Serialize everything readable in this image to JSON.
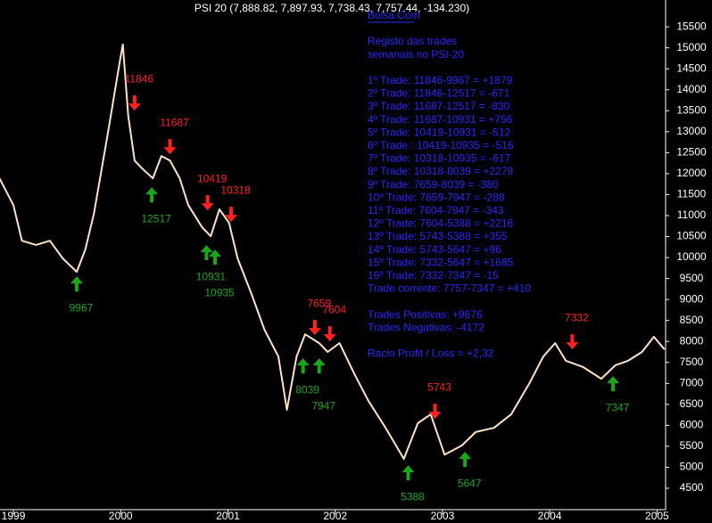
{
  "chart_data": {
    "type": "line",
    "title": "PSI 20 (7,888.82, 7,897.93, 7,738.43, 7,757.44, -134.230)",
    "x": [
      1998.87,
      1999.0,
      1999.08,
      1999.21,
      1999.34,
      1999.46,
      1999.59,
      1999.67,
      1999.75,
      1999.88,
      1999.99,
      2000.02,
      2000.07,
      2000.13,
      2000.21,
      2000.3,
      2000.38,
      2000.46,
      2000.55,
      2000.63,
      2000.76,
      2000.84,
      2000.92,
      2001.01,
      2001.09,
      2001.22,
      2001.34,
      2001.47,
      2001.55,
      2001.64,
      2001.72,
      2001.85,
      2001.93,
      2002.04,
      2002.18,
      2002.31,
      2002.47,
      2002.64,
      2002.77,
      2002.89,
      2003.02,
      2003.18,
      2003.31,
      2003.48,
      2003.64,
      2003.81,
      2003.94,
      2004.05,
      2004.15,
      2004.31,
      2004.48,
      2004.61,
      2004.73,
      2004.86,
      2004.97,
      2005.07
    ],
    "series": [
      {
        "name": "PSI 20",
        "color": "#ffe2c4",
        "values": [
          11890,
          11250,
          10400,
          10300,
          10400,
          9980,
          9660,
          10190,
          11040,
          12950,
          14650,
          15080,
          13380,
          12310,
          12100,
          11890,
          12420,
          12310,
          11890,
          11250,
          10720,
          10510,
          11150,
          10830,
          9980,
          9130,
          8280,
          7640,
          6370,
          7640,
          8170,
          7960,
          7750,
          7960,
          7220,
          6580,
          5940,
          5200,
          6050,
          6260,
          5300,
          5520,
          5840,
          5940,
          6260,
          7000,
          7640,
          7960,
          7540,
          7390,
          7110,
          7430,
          7540,
          7750,
          8110,
          7810
        ]
      }
    ],
    "xlim": [
      1998.875,
      2005.08
    ],
    "xticks": [
      1999,
      2000,
      2001,
      2002,
      2003,
      2004,
      2005
    ],
    "ylim": [
      3990,
      16140
    ],
    "yticks": [
      4500,
      5000,
      5500,
      6000,
      6500,
      7000,
      7500,
      8000,
      8500,
      9000,
      9500,
      10000,
      10500,
      11000,
      11500,
      12000,
      12500,
      13000,
      13500,
      14000,
      14500,
      15000,
      15500
    ],
    "annotations": [
      {
        "text": "11846",
        "x": 2000.13,
        "y": 13673,
        "dir": "down",
        "color": "#ff2020"
      },
      {
        "text": "11687",
        "x": 2000.46,
        "y": 12633,
        "dir": "down",
        "color": "#ff2020"
      },
      {
        "text": "10419",
        "x": 2000.81,
        "y": 11294,
        "dir": "down",
        "color": "#ff2020"
      },
      {
        "text": "10318",
        "x": 2001.03,
        "y": 11018,
        "dir": "down",
        "color": "#ff2020"
      },
      {
        "text": "7659",
        "x": 2001.81,
        "y": 8321,
        "dir": "down",
        "color": "#ff2020"
      },
      {
        "text": "7604",
        "x": 2001.95,
        "y": 8172,
        "dir": "down",
        "color": "#ff2020"
      },
      {
        "text": "5743",
        "x": 2002.93,
        "y": 6324,
        "dir": "down",
        "color": "#ff2020"
      },
      {
        "text": "7332",
        "x": 2004.21,
        "y": 7981,
        "dir": "down",
        "color": "#ff2020"
      },
      {
        "text": "9967",
        "x": 1999.59,
        "y": 9383,
        "dir": "up",
        "color": "#18a818"
      },
      {
        "text": "12517",
        "x": 2000.29,
        "y": 11507,
        "dir": "up",
        "color": "#18a818"
      },
      {
        "text": "10931",
        "x": 2000.8,
        "y": 10126,
        "dir": "up",
        "color": "#18a818"
      },
      {
        "text": "10935",
        "x": 2000.88,
        "y": 10020,
        "dir": "up",
        "color": "#18a818"
      },
      {
        "text": "8039",
        "x": 2001.7,
        "y": 7429,
        "dir": "up",
        "color": "#18a818"
      },
      {
        "text": "7947",
        "x": 2001.85,
        "y": 7429,
        "dir": "up",
        "color": "#18a818"
      },
      {
        "text": "5388",
        "x": 2002.68,
        "y": 4880,
        "dir": "up",
        "color": "#18a818"
      },
      {
        "text": "5647",
        "x": 2003.21,
        "y": 5199,
        "dir": "up",
        "color": "#18a818"
      },
      {
        "text": "7347",
        "x": 2004.59,
        "y": 7004,
        "dir": "up",
        "color": "#18a818"
      }
    ],
    "notes": {
      "heading": "Bolsa.Com",
      "groups": [
        [
          "Registo das trades",
          "semanais no PSI-20"
        ],
        [
          "1º Trade: 11846-9967 = +1879",
          "2º Trade: 11846-12517 = -671",
          "3º Trade: 11687-12517 = -830",
          "4º Trade: 11687-10931 = +756",
          "5º Trade: 10419-10931 = -512",
          "6º Trade : 10419-10935 = -516",
          "7º Trade: 10318-10935 = -617",
          "8º Trade: 10318-8039 = +2279",
          "9º Trade: 7659-8039 = -380",
          "10º Trade: 7659-7947 = -288",
          "11º Trade: 7604-7947 = -343",
          "12º Trade: 7604-5388 = +2216",
          "13º Trade: 5743-5388 = +355",
          "14º Trade: 5743-5647 = +96",
          "15º Trade: 7332-5647 = +1685",
          "16º Trade: 7332-7347 = -15",
          "Trade corrente: 7757-7347 = +410"
        ],
        [
          "Trades Positivas: +9676",
          "Trades Negativas: -4172"
        ],
        [
          "Racio Profit / Loss = +2,32"
        ]
      ],
      "color": "#2828ff"
    }
  }
}
